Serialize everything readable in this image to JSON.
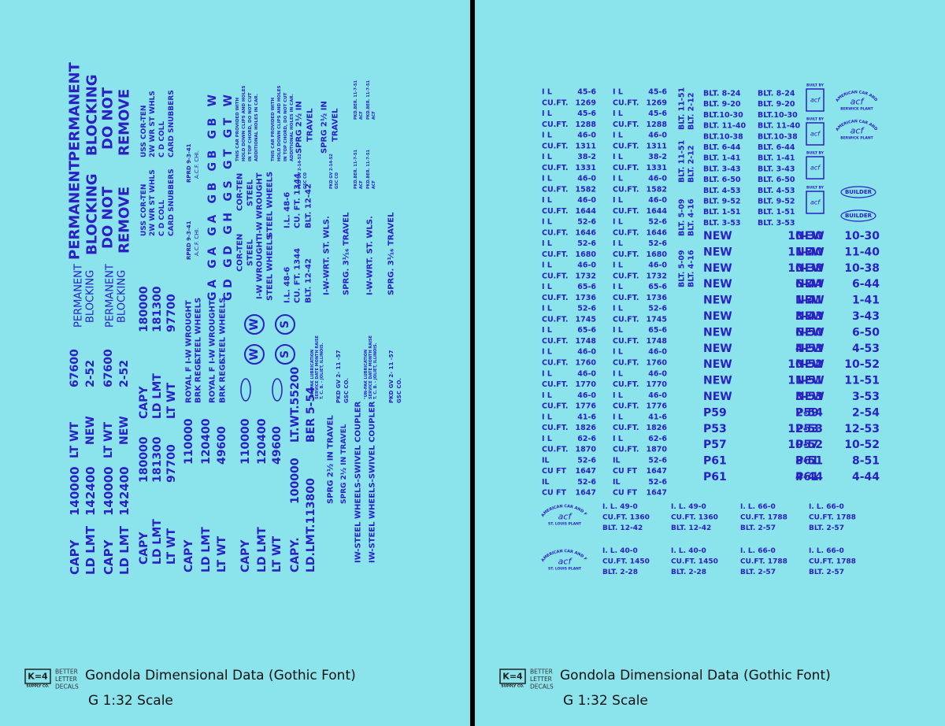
{
  "left_sheet": {
    "lines": [
      "CAPY",
      "140000",
      "LT WT",
      "67600",
      "LD LMT",
      "142400",
      "NEW",
      "2-52",
      "CAPY",
      "140000",
      "LT WT",
      "67600",
      "LD LMT",
      "142400",
      "NEW",
      "2-52",
      "CAPY",
      "LD LMT",
      "LT WT",
      "180000",
      "181300",
      "97700",
      "CAPY",
      "LD LMT",
      "LT WT",
      "180000",
      "181300",
      "97700",
      "PERMANENT",
      "BLOCKING",
      "PERMANENT",
      "BLOCKING",
      "PERMANENT",
      "BLOCKING",
      "DO NOT",
      "REMOVE",
      "PERMANENT",
      "BLOCKING",
      "DO NOT",
      "REMOVE",
      "USS COR-TEN",
      "2W WR ST WHLS",
      "C D COLL",
      "CARD SNUBBERS",
      "USS COR-TEN",
      "2W WR ST WHLS",
      "C D COLL",
      "CARD SNUBBERS",
      "RPRD 9-3-41",
      "A.C.F. CHI.",
      "RPRD 9-3-41",
      "A.C.F. CHI.",
      "CAPY",
      "LD LMT",
      "LT WT",
      "110000",
      "120400",
      "49600",
      "CAPY",
      "LD LMT",
      "LT WT",
      "110000",
      "120400",
      "49600",
      "CAPY.",
      "100000",
      "LT.WT.55200",
      "LD.LMT.113800",
      "BER 5-54",
      "ROYAL F",
      "BRK REGL.",
      "ROYAL F",
      "BRK REGL.",
      "I-W WROUGHT",
      "STEEL WHEELS",
      "I-W WROUGHT",
      "STEEL WHEELS",
      "GA GA GA GB GB GB W",
      "GD GD GH GS GT GT W",
      "COR-TEN",
      "STEEL",
      "I-W WROUGHT",
      "STEEL WHEELS",
      "COR-TEN",
      "STEEL",
      "I-W WROUGHT",
      "STEEL WHEELS",
      "W",
      "W",
      "S",
      "S",
      "I.L. 48-6",
      "CU. FT. 1344",
      "BLT. 12-42",
      "I.L. 48-6",
      "CU. FT. 1344",
      "BLT. 12-42",
      "SPRG 2½ IN",
      "TRAVEL",
      "SPRG 2½ IN",
      "TRAVEL",
      "SPRG 2½ IN TRAVEL",
      "SPRG 2½ IN TRAVEL",
      "IW-STEEL WHEELS-SWIVEL COUPLER",
      "IW-STEEL WHEELS-SWIVEL COUPLER",
      "I-W-WRT. ST. WLS.",
      "SPRG. 3¹⁄₁₆ TRAVEL",
      "I-W-WRT. ST. WLS.",
      "SPRG. 3¹⁄₁₆ TRAVEL",
      "PKD GV 2- 11 -57",
      "GSC CO.",
      "PKD GV 2- 11 -57",
      "GSC CO.",
      "\"UN-PAK LUBRICATION",
      "SERVICE DATE MONTH RAISE",
      "T. C. B. - JOLIET, ILLINOIS.",
      "\"UN-PAK LUBRICATION",
      "SERVICE DATE MONTH RAISE",
      "T. C. B. - JOLIET, ILLINOIS.",
      "THIS CAR PROVIDED WITH",
      "HOLD DOWN CLIPS AND HOLES",
      "IN TOP CHORD, DO NOT CUT",
      "ADDITIONAL HOLES IN CAR.",
      "THIS CAR PROVIDED WITH",
      "HOLD DOWN CLIPS AND HOLES",
      "IN TOP CHORD, DO NOT CUT",
      "ADDITIONAL HOLES IN CAR.",
      "PKD GV 2-14-52",
      "GSC CO",
      "PKD GV 2-14-52",
      "GSC CO",
      "PKD.BER. 11-7-51",
      "ACF",
      "PKD.BER. 11-7-51",
      "ACF",
      "PKD.BER. 11-7-51",
      "ACF",
      "PKD.BER. 11-7-51",
      "ACF"
    ]
  },
  "right_sheet": {
    "car_rows": [
      [
        "I L",
        "45-6"
      ],
      [
        "CU.FT.",
        "1269"
      ],
      [
        "I L",
        "45-6"
      ],
      [
        "CU.FT.",
        "1288"
      ],
      [
        "I L",
        "46-0"
      ],
      [
        "CU.FT.",
        "1311"
      ],
      [
        "I L",
        "38-2"
      ],
      [
        "CU.FT.",
        "1331"
      ],
      [
        "I L",
        "46-0"
      ],
      [
        "CU.FT.",
        "1582"
      ],
      [
        "I L",
        "46-0"
      ],
      [
        "CU.FT.",
        "1644"
      ],
      [
        "I L",
        "52-6"
      ],
      [
        "CU.FT.",
        "1646"
      ],
      [
        "I L",
        "52-6"
      ],
      [
        "CU.FT.",
        "1680"
      ],
      [
        "I L",
        "46-0"
      ],
      [
        "CU.FT.",
        "1732"
      ],
      [
        "I L",
        "65-6"
      ],
      [
        "CU.FT.",
        "1736"
      ],
      [
        "I L",
        "52-6"
      ],
      [
        "CU.FT.",
        "1745"
      ],
      [
        "I L",
        "65-6"
      ],
      [
        "CU.FT.",
        "1748"
      ],
      [
        "I L",
        "46-0"
      ],
      [
        "CU.FT.",
        "1760"
      ],
      [
        "I L",
        "46-0"
      ],
      [
        "CU.FT.",
        "1770"
      ],
      [
        "I L",
        "46-0"
      ],
      [
        "CU.FT.",
        "1776"
      ],
      [
        "I L",
        "41-6"
      ],
      [
        "CU.FT.",
        "1826"
      ],
      [
        "I L",
        "62-6"
      ],
      [
        "CU.FT.",
        "1870"
      ],
      [
        "IL",
        "52-6"
      ],
      [
        "CU FT",
        "1647"
      ],
      [
        "IL",
        "52-6"
      ],
      [
        "CU FT",
        "1647"
      ]
    ],
    "blt_rows": [
      "BLT. 8-24",
      "BLT. 9-20",
      "BLT.10-30",
      "BLT. 11-40",
      "BLT.10-38",
      "BLT. 6-44",
      "BLT. 1-41",
      "BLT. 3-43",
      "BLT. 6-50",
      "BLT. 4-53",
      "BLT. 9-52",
      "BLT. 1-51",
      "BLT. 3-53"
    ],
    "blt_side": [
      "BLT. 11-51",
      "BLT. 2-12",
      "BLT. 5-09",
      "BLT. 4-16"
    ],
    "new_rows": [
      [
        "NEW",
        "10-30"
      ],
      [
        "NEW",
        "11-40"
      ],
      [
        "NEW",
        "10-38"
      ],
      [
        "NEW",
        "6-44"
      ],
      [
        "NEW",
        "1-41"
      ],
      [
        "NEW",
        "3-43"
      ],
      [
        "NEW",
        "6-50"
      ],
      [
        "NEW",
        "4-53"
      ],
      [
        "NEW",
        "10-52"
      ],
      [
        "NEW",
        "11-51"
      ],
      [
        "NEW",
        "3-53"
      ],
      [
        "P59",
        "2-54"
      ],
      [
        "P53",
        "12-53"
      ],
      [
        "P57",
        "10-52"
      ],
      [
        "P61",
        "8-51"
      ],
      [
        "P61",
        "4-44"
      ]
    ],
    "bottom_blocks": [
      [
        "I. L. 49-0",
        "CU.FT. 1360",
        "BLT. 12-42"
      ],
      [
        "I. L. 66-0",
        "CU.FT. 1788",
        "BLT. 2-57"
      ],
      [
        "I. L. 40-0",
        "CU.FT. 1450",
        "BLT. 2-28"
      ],
      [
        "I. L. 66-0",
        "CU.FT. 1788",
        "BLT. 2-57"
      ]
    ],
    "logo_texts": {
      "company": "AMERICAN CAR AND FOUNDRY CO.",
      "mark": "acf",
      "plant_a": "ST. LOUIS PLANT",
      "plant_b": "BERWICK PLANT",
      "built_by": "BUILT BY",
      "builder": "BUILDER"
    }
  },
  "footer": {
    "brand": "K=4",
    "brand_sub": "SUPPLY CO.",
    "tagline": [
      "BETTER",
      "LETTER",
      "DECALS"
    ],
    "title": "Gondola Dimensional Data (Gothic Font)",
    "scale": "G 1:32 Scale"
  }
}
